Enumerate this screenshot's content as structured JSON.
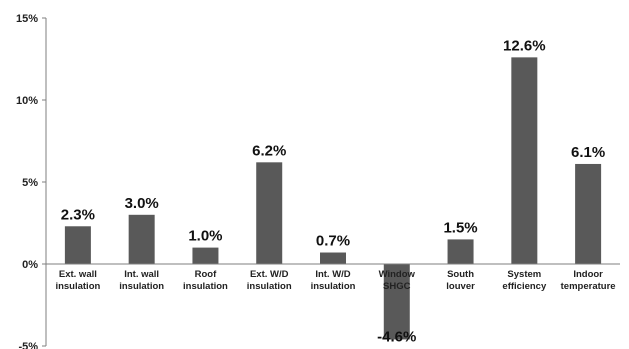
{
  "chart_data": {
    "type": "bar",
    "categories": [
      [
        "Ext. wall",
        "insulation"
      ],
      [
        "Int. wall",
        "insulation"
      ],
      [
        "Roof",
        "insulation"
      ],
      [
        "Ext. W/D",
        "insulation"
      ],
      [
        "Int. W/D",
        "insulation"
      ],
      [
        "Window",
        "SHGC"
      ],
      [
        "South",
        "louver"
      ],
      [
        "System",
        "efficiency"
      ],
      [
        "Indoor",
        "temperature"
      ]
    ],
    "values": [
      2.3,
      3.0,
      1.0,
      6.2,
      0.7,
      -4.6,
      1.5,
      12.6,
      6.1
    ],
    "data_labels": [
      "2.3%",
      "3.0%",
      "1.0%",
      "6.2%",
      "0.7%",
      "-4.6%",
      "1.5%",
      "12.6%",
      "6.1%"
    ],
    "yticks": [
      15,
      10,
      5,
      0,
      -5
    ],
    "ytick_labels": [
      "15%",
      "10%",
      "5%",
      "0%",
      "-5%"
    ],
    "ylim": [
      -5,
      15
    ],
    "grid": false,
    "bar_color": "#595959",
    "axis_color": "#7f7f7f",
    "title": "",
    "xlabel": "",
    "ylabel": ""
  }
}
